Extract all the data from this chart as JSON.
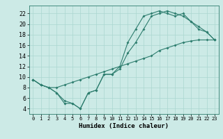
{
  "xlabel": "Humidex (Indice chaleur)",
  "xlim": [
    -0.5,
    23.5
  ],
  "ylim": [
    3,
    23.5
  ],
  "xticks": [
    0,
    1,
    2,
    3,
    4,
    5,
    6,
    7,
    8,
    9,
    10,
    11,
    12,
    13,
    14,
    15,
    16,
    17,
    18,
    19,
    20,
    21,
    22,
    23
  ],
  "yticks": [
    4,
    6,
    8,
    10,
    12,
    14,
    16,
    18,
    20,
    22
  ],
  "bg_color": "#cceae6",
  "line_color": "#2d7d6e",
  "grid_color": "#aad6d0",
  "series1_x": [
    0,
    1,
    2,
    3,
    4,
    5,
    6,
    7,
    8,
    9,
    10,
    11,
    12,
    13,
    14,
    15,
    16,
    17,
    18,
    19,
    20,
    21,
    22,
    23
  ],
  "series1_y": [
    9.5,
    8.5,
    8.0,
    7.0,
    5.0,
    5.0,
    4.0,
    7.0,
    7.5,
    10.5,
    10.5,
    12.0,
    16.5,
    19.0,
    21.5,
    22.0,
    22.5,
    22.0,
    21.5,
    22.0,
    20.5,
    19.0,
    18.5,
    17.0
  ],
  "series2_x": [
    0,
    1,
    2,
    3,
    4,
    5,
    6,
    7,
    8,
    9,
    10,
    11,
    12,
    13,
    14,
    15,
    16,
    17,
    18,
    19,
    20,
    21,
    22,
    23
  ],
  "series2_y": [
    9.5,
    8.5,
    8.0,
    8.0,
    8.5,
    9.0,
    9.5,
    10.0,
    10.5,
    11.0,
    11.5,
    12.0,
    12.5,
    13.0,
    13.5,
    14.0,
    15.0,
    15.5,
    16.0,
    16.5,
    16.8,
    17.0,
    17.0,
    17.0
  ],
  "series3_x": [
    0,
    1,
    2,
    3,
    4,
    5,
    6,
    7,
    8,
    9,
    10,
    11,
    12,
    13,
    14,
    15,
    16,
    17,
    18,
    19,
    20,
    21,
    22,
    23
  ],
  "series3_y": [
    9.5,
    8.5,
    8.0,
    7.0,
    5.5,
    5.0,
    4.0,
    7.0,
    7.5,
    10.5,
    10.5,
    11.5,
    14.5,
    16.5,
    19.0,
    21.5,
    22.0,
    22.5,
    22.0,
    21.5,
    20.5,
    19.5,
    18.5,
    17.0
  ]
}
